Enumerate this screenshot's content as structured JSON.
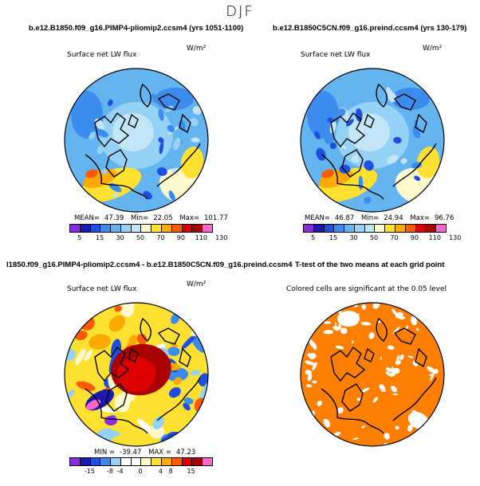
{
  "figure": {
    "season": "DJF",
    "panel_tl_case": "b.e12.B1850.f09_g16.PIMP4-pliomip2.ccsm4 (yrs 1051-1100)",
    "panel_tr_case": "b.e12.B1850C5CN.f09_g16.preind.ccsm4 (yrs 130-179)",
    "panel_bl_case": "l1850.f09_g16.PIMP4-pliomip2.ccsm4 - b.e12.B1850C5CN.f09_g16.preind.ccsm4",
    "panel_br_case": "T-test of the two means at each grid point"
  },
  "chart_data": [
    {
      "type": "heatmap",
      "projection": "north polar stereographic",
      "title": "Surface net LW flux",
      "units": "W/m²",
      "stats": {
        "mean_label": "MEAN=",
        "mean": "47.39",
        "min_label": "Min=",
        "min": "22.05",
        "max_label": "Max=",
        "max": "101.77"
      },
      "colorbar_levels": [
        "5",
        "15",
        "30",
        "50",
        "70",
        "90",
        "110",
        "130"
      ],
      "colorbar_colors": [
        "#8a2be2",
        "#1a1ab0",
        "#1e50e0",
        "#3c8cf0",
        "#64b4f0",
        "#96d2f5",
        "#c0e6f8",
        "#fffacd",
        "#ffe132",
        "#ffaa00",
        "#ff5a00",
        "#dc0000",
        "#aa0000",
        "#ff66cc"
      ]
    },
    {
      "type": "heatmap",
      "projection": "north polar stereographic",
      "title": "Surface net LW flux",
      "units": "W/m²",
      "stats": {
        "mean_label": "MEAN=",
        "mean": "46.87",
        "min_label": "Min=",
        "min": "24.94",
        "max_label": "Max=",
        "max": "96.76"
      },
      "colorbar_levels": [
        "5",
        "15",
        "30",
        "50",
        "70",
        "90",
        "110",
        "130"
      ],
      "colorbar_colors": [
        "#8a2be2",
        "#1a1ab0",
        "#1e50e0",
        "#3c8cf0",
        "#64b4f0",
        "#96d2f5",
        "#c0e6f8",
        "#fffacd",
        "#ffe132",
        "#ffaa00",
        "#ff5a00",
        "#dc0000",
        "#aa0000",
        "#ff66cc"
      ]
    },
    {
      "type": "heatmap",
      "projection": "north polar stereographic",
      "title": "Surface net LW flux",
      "units": "W/m²",
      "stats": {
        "min_label": "MIN =",
        "min": "-39.47",
        "max_label": "MAX =",
        "max": "47.23"
      },
      "colorbar_levels": [
        "-15",
        "-8",
        "-4",
        "0",
        "4",
        "8",
        "15"
      ],
      "colorbar_colors": [
        "#8a2be2",
        "#1a1ab0",
        "#1e50e0",
        "#3c8cf0",
        "#96d2f5",
        "#ffffff",
        "#ffffff",
        "#fffacd",
        "#ffe132",
        "#ffaa00",
        "#ff5a00",
        "#dc0000",
        "#aa0000",
        "#ff66cc"
      ]
    },
    {
      "type": "heatmap",
      "projection": "north polar stereographic",
      "title": "Colored cells are significant at the 0.05 level",
      "significant_fraction_pct": 85,
      "fill_color": "#ff7f00"
    }
  ]
}
